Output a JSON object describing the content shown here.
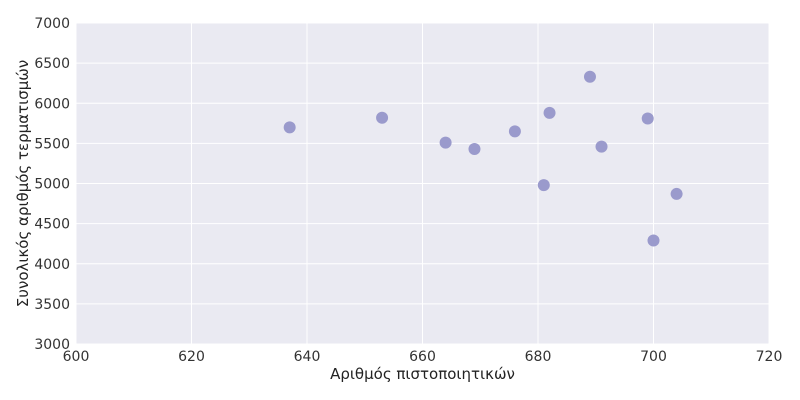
{
  "chart_data": {
    "type": "scatter",
    "title": "",
    "xlabel": "Αριθμός πιστοποιητικών",
    "ylabel": "Συνολικός αριθμός τερματισμών",
    "xlim": [
      600,
      720
    ],
    "ylim": [
      3000,
      7000
    ],
    "x_ticks": [
      600,
      620,
      640,
      660,
      680,
      700,
      720
    ],
    "y_ticks": [
      3000,
      3500,
      4000,
      4500,
      5000,
      5500,
      6000,
      6500,
      7000
    ],
    "x_tick_labels": [
      "600",
      "620",
      "640",
      "660",
      "680",
      "700",
      "720"
    ],
    "y_tick_labels": [
      "3000",
      "3500",
      "4000",
      "4500",
      "5000",
      "5500",
      "6000",
      "6500",
      "7000"
    ],
    "grid": true,
    "colors": {
      "background": "#eaeaf2",
      "grid": "#ffffff",
      "marker": "#9a9acc"
    },
    "points": [
      {
        "x": 637,
        "y": 5700
      },
      {
        "x": 653,
        "y": 5820
      },
      {
        "x": 664,
        "y": 5510
      },
      {
        "x": 669,
        "y": 5430
      },
      {
        "x": 676,
        "y": 5650
      },
      {
        "x": 681,
        "y": 4980
      },
      {
        "x": 682,
        "y": 5880
      },
      {
        "x": 689,
        "y": 6330
      },
      {
        "x": 691,
        "y": 5460
      },
      {
        "x": 699,
        "y": 5810
      },
      {
        "x": 700,
        "y": 4290
      },
      {
        "x": 704,
        "y": 4870
      }
    ]
  }
}
